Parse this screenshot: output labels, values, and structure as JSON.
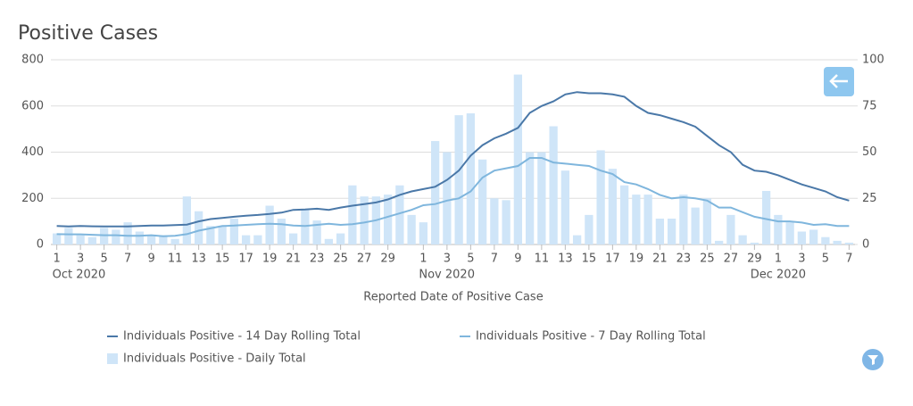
{
  "chart_data": {
    "type": "combo",
    "title": "Positive Cases",
    "x_label": "Reported Date of Positive Case",
    "categories": [
      "1",
      null,
      "3",
      null,
      "5",
      null,
      "7",
      null,
      "9",
      null,
      "11",
      null,
      "13",
      null,
      "15",
      null,
      "17",
      null,
      "19",
      null,
      "21",
      null,
      "23",
      null,
      "25",
      null,
      "27",
      null,
      "29",
      null,
      null,
      "1",
      null,
      "3",
      null,
      "5",
      null,
      "7",
      null,
      "9",
      null,
      "11",
      null,
      "13",
      null,
      "15",
      null,
      "17",
      null,
      "19",
      null,
      "21",
      null,
      "23",
      null,
      "25",
      null,
      "27",
      null,
      "29",
      null,
      "1",
      null,
      "3",
      null,
      "5",
      null,
      "7"
    ],
    "x_group_labels": [
      {
        "category": 0,
        "label": "Oct 2020"
      },
      {
        "category": 31,
        "label": "Nov 2020"
      },
      {
        "category": 61,
        "label": "Dec 2020"
      }
    ],
    "ylim": [
      0,
      800
    ],
    "yticks": [
      0,
      200,
      400,
      600,
      800
    ],
    "y2lim": [
      0,
      100
    ],
    "y2ticks": [
      0,
      25,
      50,
      75,
      100
    ],
    "grid": true,
    "series": [
      {
        "name": "Individuals Positive - 14 Day Rolling Total",
        "type": "line",
        "color": "#4a78a8",
        "values": [
          80,
          78,
          80,
          79,
          78,
          78,
          78,
          80,
          82,
          82,
          84,
          86,
          100,
          110,
          115,
          120,
          125,
          128,
          132,
          138,
          150,
          152,
          155,
          150,
          160,
          168,
          175,
          182,
          195,
          215,
          230,
          240,
          250,
          280,
          320,
          385,
          430,
          460,
          480,
          505,
          570,
          600,
          620,
          650,
          660,
          655,
          655,
          650,
          640,
          600,
          570,
          560,
          545,
          530,
          510,
          470,
          430,
          400,
          345,
          320,
          315,
          300,
          280,
          260,
          245,
          230,
          205,
          190
        ]
      },
      {
        "name": "Individuals Positive - 7 Day Rolling Total",
        "type": "line",
        "color": "#7fb6dd",
        "values": [
          45,
          44,
          44,
          42,
          40,
          40,
          38,
          38,
          40,
          36,
          38,
          45,
          60,
          70,
          80,
          82,
          85,
          88,
          90,
          88,
          82,
          80,
          85,
          90,
          85,
          88,
          95,
          105,
          120,
          135,
          150,
          170,
          175,
          190,
          200,
          230,
          290,
          320,
          330,
          340,
          375,
          375,
          355,
          350,
          345,
          340,
          320,
          305,
          270,
          260,
          240,
          215,
          200,
          205,
          200,
          190,
          160,
          160,
          140,
          120,
          110,
          100,
          100,
          95,
          85,
          88,
          80,
          80
        ]
      },
      {
        "name": "Individuals Positive - Daily Total",
        "type": "bar",
        "axis": "y2",
        "color": "#cfe5f8",
        "values": [
          6,
          9,
          5,
          4,
          9,
          8,
          12,
          7,
          5,
          5,
          3,
          26,
          18,
          10,
          10,
          14,
          5,
          5,
          21,
          14,
          6,
          19,
          13,
          3,
          6,
          32,
          26,
          26,
          27,
          32,
          16,
          12,
          56,
          50,
          70,
          71,
          46,
          25,
          24,
          92,
          50,
          50,
          64,
          40,
          5,
          16,
          51,
          41,
          32,
          27,
          27,
          14,
          14,
          27,
          20,
          25,
          2,
          16,
          5,
          1,
          29,
          16,
          12,
          7,
          8,
          4,
          2,
          1
        ]
      }
    ]
  }
}
